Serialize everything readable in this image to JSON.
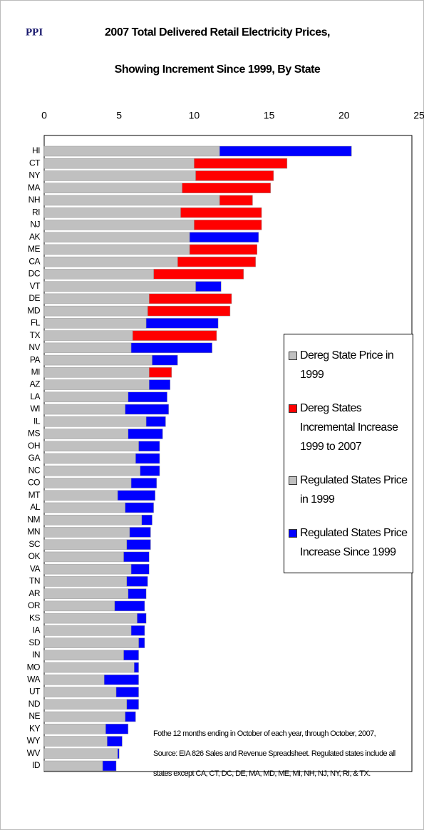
{
  "chart_data": {
    "type": "stacked_barh",
    "logo": "PPI",
    "title": [
      "2007 Total Delivered Retail Electricity Prices,",
      "Showing Increment Since 1999, By State"
    ],
    "categories": [
      "HI",
      "CT",
      "NY",
      "MA",
      "NH",
      "RI",
      "NJ",
      "AK",
      "ME",
      "CA",
      "DC",
      "VT",
      "DE",
      "MD",
      "FL",
      "TX",
      "NV",
      "PA",
      "MI",
      "AZ",
      "LA",
      "WI",
      "IL",
      "MS",
      "OH",
      "GA",
      "NC",
      "CO",
      "MT",
      "AL",
      "NM",
      "MN",
      "SC",
      "OK",
      "VA",
      "TN",
      "AR",
      "OR",
      "KS",
      "IA",
      "SD",
      "IN",
      "MO",
      "WA",
      "UT",
      "ND",
      "NE",
      "KY",
      "WY",
      "WV",
      "ID"
    ],
    "series": [
      {
        "name": "Dereg State Price in 1999",
        "color": "#c0c0c0",
        "values": [
          null,
          10.0,
          10.1,
          9.2,
          11.7,
          9.1,
          10.0,
          null,
          9.7,
          8.9,
          7.3,
          null,
          7.0,
          6.9,
          null,
          5.9,
          null,
          null,
          7.0,
          null,
          null,
          null,
          null,
          null,
          null,
          null,
          null,
          null,
          null,
          null,
          null,
          null,
          null,
          null,
          null,
          null,
          null,
          null,
          null,
          null,
          null,
          null,
          null,
          null,
          null,
          null,
          null,
          null,
          null,
          null,
          null
        ]
      },
      {
        "name": "Dereg States Incremental Increase 1999 to 2007",
        "color": "#ff0000",
        "values": [
          null,
          6.2,
          5.2,
          5.9,
          2.2,
          5.4,
          4.5,
          null,
          4.5,
          5.2,
          6.0,
          null,
          5.5,
          5.5,
          null,
          5.6,
          null,
          null,
          1.5,
          null,
          null,
          null,
          null,
          null,
          null,
          null,
          null,
          null,
          null,
          null,
          null,
          null,
          null,
          null,
          null,
          null,
          null,
          null,
          null,
          null,
          null,
          null,
          null,
          null,
          null,
          null,
          null,
          null,
          null,
          null,
          null
        ]
      },
      {
        "name": "Regulated States Price in 1999",
        "color": "#c0c0c0",
        "values": [
          11.7,
          null,
          null,
          null,
          null,
          null,
          null,
          9.7,
          null,
          null,
          null,
          10.1,
          null,
          null,
          6.8,
          null,
          5.8,
          7.2,
          null,
          7.0,
          5.6,
          5.4,
          6.8,
          5.6,
          6.3,
          6.1,
          6.4,
          5.8,
          4.9,
          5.4,
          6.5,
          5.7,
          5.5,
          5.3,
          5.8,
          5.5,
          5.6,
          4.7,
          6.2,
          5.8,
          6.3,
          5.3,
          6.0,
          4.0,
          4.8,
          5.5,
          5.4,
          4.1,
          4.2,
          4.9,
          3.9
        ]
      },
      {
        "name": "Regulated States Price Increase Since 1999",
        "color": "#0000ff",
        "values": [
          8.8,
          null,
          null,
          null,
          null,
          null,
          null,
          4.6,
          null,
          null,
          null,
          1.7,
          null,
          null,
          4.8,
          null,
          5.4,
          1.7,
          null,
          1.4,
          2.6,
          2.9,
          1.3,
          2.3,
          1.4,
          1.6,
          1.3,
          1.7,
          2.5,
          1.9,
          0.7,
          1.4,
          1.6,
          1.7,
          1.2,
          1.4,
          1.2,
          2.0,
          0.6,
          0.9,
          0.4,
          1.0,
          0.3,
          2.3,
          1.5,
          0.8,
          0.7,
          1.5,
          1.0,
          0.1,
          0.9
        ]
      }
    ],
    "xlim": [
      0,
      25
    ],
    "xticks": [
      0,
      5,
      10,
      15,
      20,
      25
    ],
    "grid": false,
    "legend": "right",
    "notes": [
      "Fothe 12 months ending in October of each year, through October, 2007,",
      "Source: EIA 826 Sales and Revenue Spreadsheet.  Regulated states include all",
      "states except CA, CT, DC, DE, MA, MD, ME, MI, NH, NJ, NY, RI, & TX."
    ]
  }
}
